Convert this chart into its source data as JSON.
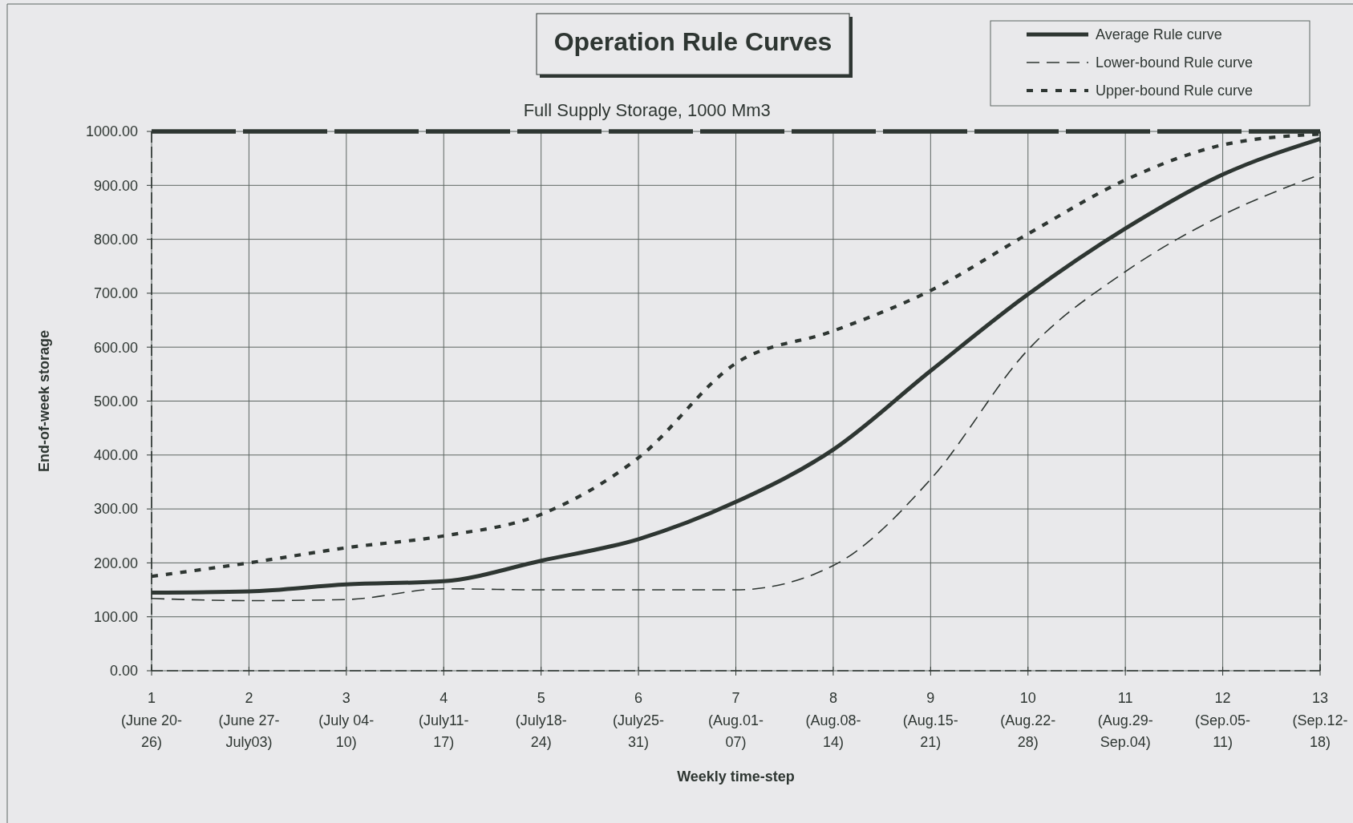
{
  "chart_data": {
    "type": "line",
    "title": "Operation Rule Curves",
    "xlabel": "Weekly time-step",
    "ylabel": "End-of-week storage",
    "categories": [
      "1\n(June 20-\n26)",
      "2\n(June 27-\nJuly03)",
      "3\n(July 04-\n10)",
      "4\n(July11-\n17)",
      "5\n(July18-\n24)",
      "6\n(July25-\n31)",
      "7\n(Aug.01-\n07)",
      "8\n(Aug.08-\n14)",
      "9\n(Aug.15-\n21)",
      "10\n(Aug.22-\n28)",
      "11\n(Aug.29-\nSep.04)",
      "12\n(Sep.05-\n11)",
      "13\n(Sep.12-\n18)"
    ],
    "series": [
      {
        "name": "Average Rule curve",
        "color": "#2e3632",
        "line_style": "solid",
        "values": [
          145,
          147,
          160,
          166,
          204,
          244,
          313,
          410,
          556,
          698,
          820,
          920,
          986
        ]
      },
      {
        "name": "Lower-bound Rule curve",
        "color": "#2e3632",
        "line_style": "dashed",
        "values": [
          134,
          130,
          132,
          152,
          150,
          150,
          150,
          195,
          355,
          595,
          740,
          845,
          920
        ]
      },
      {
        "name": "Upper-bound Rule curve",
        "color": "#2e3632",
        "line_style": "dotted",
        "values": [
          175,
          200,
          228,
          250,
          290,
          395,
          570,
          630,
          705,
          810,
          910,
          975,
          995
        ]
      }
    ],
    "ylim": [
      0,
      1000
    ],
    "yticks": [
      {
        "value": 0,
        "label": "0.00"
      },
      {
        "value": 100,
        "label": "100.00"
      },
      {
        "value": 200,
        "label": "200.00"
      },
      {
        "value": 300,
        "label": "300.00"
      },
      {
        "value": 400,
        "label": "400.00"
      },
      {
        "value": 500,
        "label": "500.00"
      },
      {
        "value": 600,
        "label": "600.00"
      },
      {
        "value": 700,
        "label": "700.00"
      },
      {
        "value": 800,
        "label": "800.00"
      },
      {
        "value": 900,
        "label": "900.00"
      },
      {
        "value": 1000,
        "label": "1000.00"
      }
    ],
    "ref_lines": [
      {
        "axis": "y",
        "value": 1000,
        "label": "Full Supply Storage, 1000 Mm3",
        "color": "#2e3632",
        "line_style": "dashed"
      }
    ],
    "grid": true,
    "legend": "top right"
  }
}
